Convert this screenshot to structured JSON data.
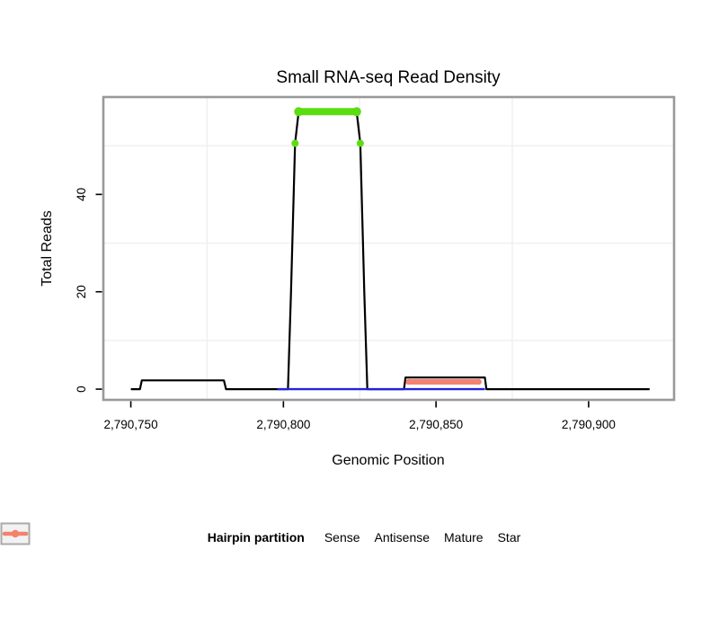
{
  "chart_data": {
    "type": "line",
    "title": "Small RNA-seq Read Density",
    "xlabel": "Genomic Position",
    "ylabel": "Total Reads",
    "legend_title": "Hairpin partition",
    "xlim": [
      2790741,
      2790928
    ],
    "ylim": [
      -2.2,
      60
    ],
    "xticks": [
      {
        "value": 2790750,
        "label": "2,790,750"
      },
      {
        "value": 2790800,
        "label": "2,790,800"
      },
      {
        "value": 2790850,
        "label": "2,790,850"
      },
      {
        "value": 2790900,
        "label": "2,790,900"
      }
    ],
    "yticks": [
      {
        "value": 0,
        "label": "0"
      },
      {
        "value": 20,
        "label": "20"
      },
      {
        "value": 40,
        "label": "40"
      }
    ],
    "grid": {
      "x_minor": [
        2790775,
        2790825,
        2790875
      ],
      "y_minor": [
        10,
        30,
        50
      ]
    },
    "style": {
      "panel_border": "#999999",
      "grid_color": "#EFEFEF",
      "background": "#FFFFFF",
      "tick_color": "#000000"
    },
    "series": [
      {
        "name": "Sense",
        "color": "#000000",
        "width": 2.2,
        "points": [
          [
            2790750,
            0
          ],
          [
            2790753,
            0
          ],
          [
            2790753.6,
            1.8
          ],
          [
            2790780.5,
            1.8
          ],
          [
            2790781.2,
            0
          ],
          [
            2790801.5,
            0
          ],
          [
            2790802.5,
            20
          ],
          [
            2790803.8,
            50.5
          ],
          [
            2790805,
            57
          ],
          [
            2790824,
            57
          ],
          [
            2790825.2,
            50.5
          ],
          [
            2790826.5,
            20
          ],
          [
            2790827.5,
            0
          ],
          [
            2790839.5,
            0
          ],
          [
            2790840,
            2.4
          ],
          [
            2790866,
            2.4
          ],
          [
            2790866.5,
            0
          ],
          [
            2790920,
            0
          ]
        ]
      },
      {
        "name": "Antisense",
        "color": "#2222DD",
        "width": 2.4,
        "points": [
          [
            2790798,
            0
          ],
          [
            2790866,
            0
          ]
        ]
      },
      {
        "name": "Mature",
        "color": "#5CDD12",
        "width": 8,
        "linecap": "round",
        "points": [
          [
            2790805,
            57
          ],
          [
            2790824,
            57
          ]
        ],
        "dots": [
          [
            2790805,
            57,
            5
          ],
          [
            2790824,
            57,
            5
          ],
          [
            2790803.8,
            50.5,
            4
          ],
          [
            2790825.2,
            50.5,
            4
          ]
        ]
      },
      {
        "name": "Star",
        "color": "#F4826E",
        "width": 6,
        "linecap": "round",
        "points": [
          [
            2790841,
            1.5
          ],
          [
            2790864,
            1.5
          ]
        ],
        "dots": [
          [
            2790841,
            1.5,
            3.2
          ],
          [
            2790864,
            1.5,
            3.2
          ]
        ]
      }
    ]
  }
}
